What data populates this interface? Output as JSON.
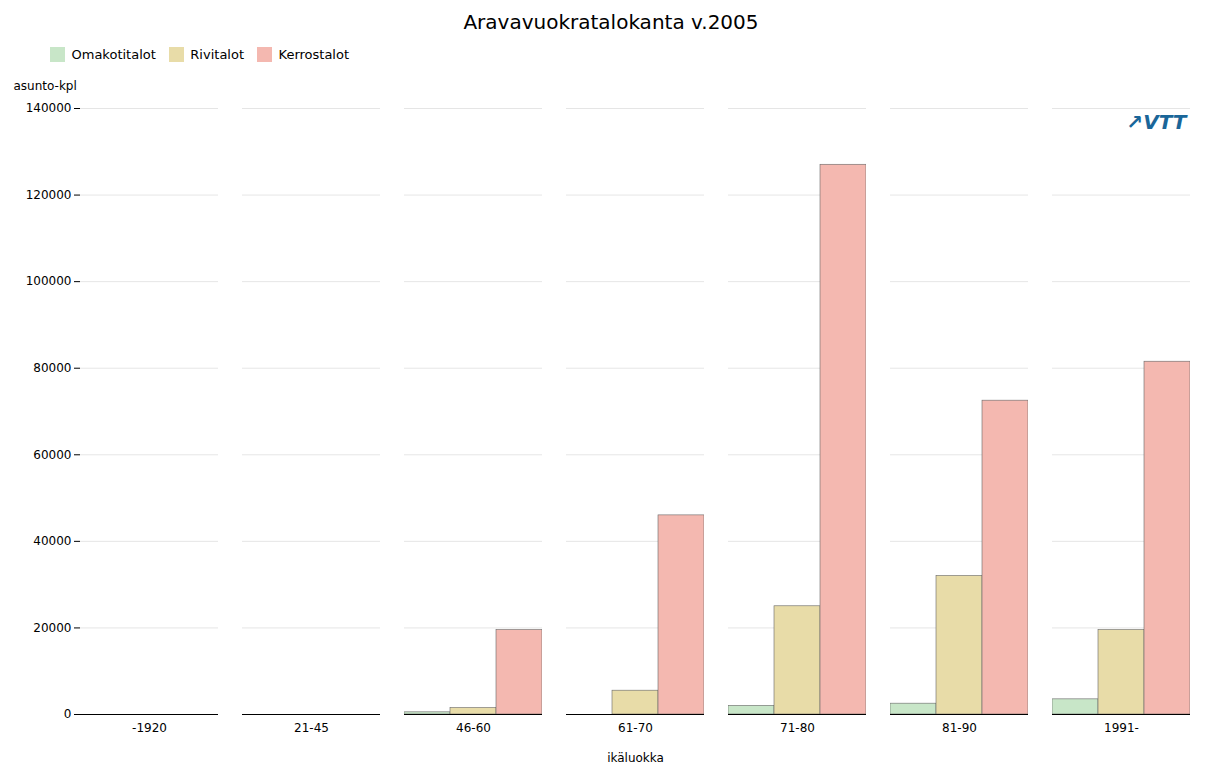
{
  "chart_data": {
    "type": "bar",
    "title": "Aravavuokratalokanta v.2005",
    "xlabel": "ikäluokka",
    "ylabel": "asunto-kpl",
    "categories": [
      "-1920",
      "21-45",
      "46-60",
      "61-70",
      "71-80",
      "81-90",
      "1991-"
    ],
    "series": [
      {
        "name": "Omakotitalot",
        "color": "#c8e6c8",
        "values": [
          0,
          0,
          500,
          0,
          2000,
          2500,
          3500
        ]
      },
      {
        "name": "Rivitalot",
        "color": "#e8dca8",
        "values": [
          0,
          0,
          1500,
          5500,
          25000,
          32000,
          19500
        ]
      },
      {
        "name": "Kerrostalot",
        "color": "#f4b8b0",
        "values": [
          0,
          0,
          19500,
          46000,
          127000,
          72500,
          81500
        ]
      }
    ],
    "ylim": [
      0,
      140000
    ],
    "yticks": [
      0,
      20000,
      40000,
      60000,
      80000,
      100000,
      120000,
      140000
    ],
    "grid": true,
    "legend": "upper left",
    "annotations": [
      "↗VTT"
    ]
  }
}
